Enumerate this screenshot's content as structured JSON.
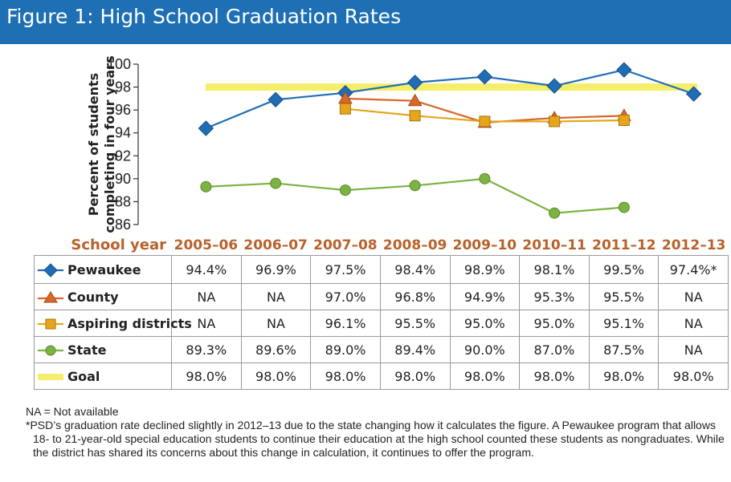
{
  "figure_title": "Figure 1: High School Graduation Rates",
  "chart_data": {
    "type": "line",
    "title": "Figure 1: High School Graduation Rates",
    "ylabel_line1": "Percent of students",
    "ylabel_line2": "completing in four years",
    "xlabel": "School year",
    "categories": [
      "2005–06",
      "2006–07",
      "2007–08",
      "2008–09",
      "2009–10",
      "2010–11",
      "2011–12",
      "2012–13"
    ],
    "ylim": [
      86,
      100
    ],
    "yticks": [
      86,
      88,
      90,
      92,
      94,
      96,
      98,
      100
    ],
    "grid": false,
    "legend_placement": "table-rows-below",
    "series": [
      {
        "name": "Pewaukee",
        "color": "#1f6db5",
        "marker": "diamond",
        "values": [
          94.4,
          96.9,
          97.5,
          98.4,
          98.9,
          98.1,
          99.5,
          97.4
        ]
      },
      {
        "name": "County",
        "color": "#d9672a",
        "marker": "triangle",
        "values": [
          null,
          null,
          97.0,
          96.8,
          94.9,
          95.3,
          95.5,
          null
        ]
      },
      {
        "name": "Aspiring districts",
        "color": "#e6a51a",
        "marker": "square",
        "values": [
          null,
          null,
          96.1,
          95.5,
          95.0,
          95.0,
          95.1,
          null
        ]
      },
      {
        "name": "State",
        "color": "#7cb342",
        "marker": "circle",
        "values": [
          89.3,
          89.6,
          89.0,
          89.4,
          90.0,
          87.0,
          87.5,
          null
        ]
      },
      {
        "name": "Goal",
        "color": "#f5ee6a",
        "marker": "band",
        "values": [
          98.0,
          98.0,
          98.0,
          98.0,
          98.0,
          98.0,
          98.0,
          98.0
        ]
      }
    ]
  },
  "table": {
    "rows": [
      {
        "label": "Pewaukee",
        "cells": [
          "94.4%",
          "96.9%",
          "97.5%",
          "98.4%",
          "98.9%",
          "98.1%",
          "99.5%",
          "97.4%*"
        ]
      },
      {
        "label": "County",
        "cells": [
          "NA",
          "NA",
          "97.0%",
          "96.8%",
          "94.9%",
          "95.3%",
          "95.5%",
          "NA"
        ]
      },
      {
        "label": "Aspiring districts",
        "cells": [
          "NA",
          "NA",
          "96.1%",
          "95.5%",
          "95.0%",
          "95.0%",
          "95.1%",
          "NA"
        ]
      },
      {
        "label": "State",
        "cells": [
          "89.3%",
          "89.6%",
          "89.0%",
          "89.4%",
          "90.0%",
          "87.0%",
          "87.5%",
          "NA"
        ]
      },
      {
        "label": "Goal",
        "cells": [
          "98.0%",
          "98.0%",
          "98.0%",
          "98.0%",
          "98.0%",
          "98.0%",
          "98.0%",
          "98.0%"
        ]
      }
    ]
  },
  "notes": {
    "na": "NA = Not available",
    "footnote": "*PSD’s graduation rate declined slightly in 2012–13 due to the state changing how it calculates the figure. A Pewaukee program that allows 18- to 21-year-old special education students to continue their education at the high school counted these students as nongraduates. While the district has shared its concerns about this change in calculation, it continues to offer the program."
  },
  "colors": {
    "header_bg": "#1e6fb3",
    "axis_label_orange": "#c0651e",
    "school_year_color": "#b8612a"
  }
}
